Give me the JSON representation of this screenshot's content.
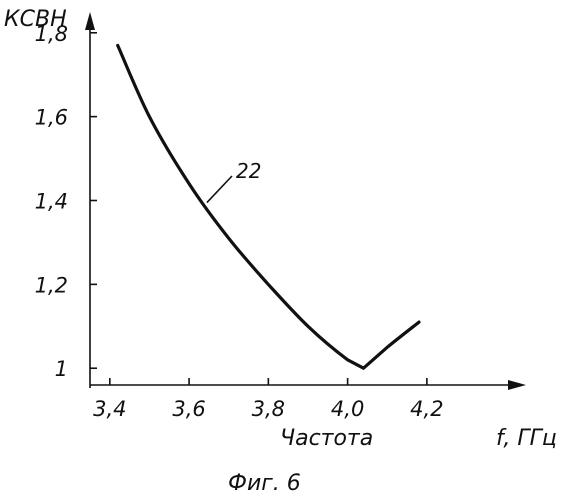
{
  "chart_data": {
    "type": "line",
    "ylabel": "КСВН",
    "xlabel": "f, ГГц",
    "xlabel_sub": "Частота",
    "caption": "Фиг. 6",
    "xlim": [
      3.35,
      4.44
    ],
    "ylim": [
      0.96,
      1.84
    ],
    "x_ticks": [
      {
        "value": 3.4,
        "label": "3,4"
      },
      {
        "value": 3.6,
        "label": "3,6"
      },
      {
        "value": 3.8,
        "label": "3,8"
      },
      {
        "value": 4.0,
        "label": "4,0"
      },
      {
        "value": 4.2,
        "label": "4,2"
      }
    ],
    "y_ticks": [
      {
        "value": 1.0,
        "label": "1"
      },
      {
        "value": 1.2,
        "label": "1,2"
      },
      {
        "value": 1.4,
        "label": "1,4"
      },
      {
        "value": 1.6,
        "label": "1,6"
      },
      {
        "value": 1.8,
        "label": "1,8"
      }
    ],
    "series": [
      {
        "callout": "22",
        "x": [
          3.42,
          3.5,
          3.6,
          3.7,
          3.8,
          3.9,
          4.0,
          4.04,
          4.1,
          4.18
        ],
        "y": [
          1.77,
          1.6,
          1.44,
          1.31,
          1.2,
          1.1,
          1.02,
          1.0,
          1.05,
          1.11
        ]
      }
    ]
  }
}
